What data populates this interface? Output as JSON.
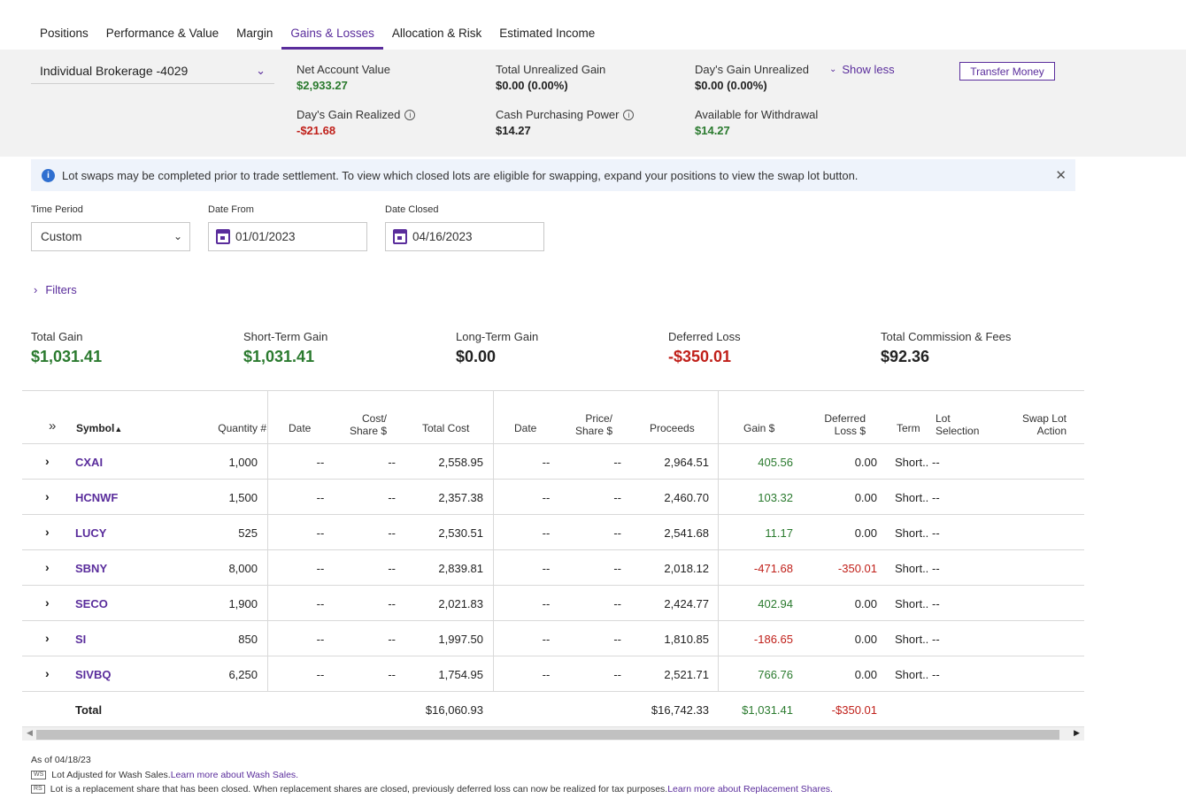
{
  "tabs": [
    {
      "label": "Positions"
    },
    {
      "label": "Performance & Value"
    },
    {
      "label": "Margin"
    },
    {
      "label": "Gains & Losses"
    },
    {
      "label": "Allocation & Risk"
    },
    {
      "label": "Estimated Income"
    }
  ],
  "account": {
    "selected": "Individual Brokerage -4029",
    "net_account_value_label": "Net Account Value",
    "net_account_value": "$2,933.27",
    "total_unrealized_label": "Total Unrealized Gain",
    "total_unrealized": "$0.00  (0.00%)",
    "days_unrealized_label": "Day's Gain Unrealized",
    "days_unrealized": "$0.00  (0.00%)",
    "days_realized_label": "Day's Gain Realized",
    "days_realized": "-$21.68",
    "cash_purchasing_label": "Cash Purchasing Power",
    "cash_purchasing": "$14.27",
    "available_withdrawal_label": "Available for Withdrawal",
    "available_withdrawal": "$14.27",
    "show_less": "Show less",
    "transfer_money": "Transfer Money"
  },
  "banner": {
    "text": "Lot swaps may be completed prior to trade settlement. To view which closed lots are eligible for swapping, expand your positions to view the swap lot button."
  },
  "filters": {
    "time_period_label": "Time Period",
    "time_period": "Custom",
    "date_from_label": "Date From",
    "date_from": "01/01/2023",
    "date_closed_label": "Date Closed",
    "date_closed": "04/16/2023",
    "filters_link": "Filters"
  },
  "totals": {
    "total_gain_label": "Total Gain",
    "total_gain": "$1,031.41",
    "short_term_label": "Short-Term Gain",
    "short_term": "$1,031.41",
    "long_term_label": "Long-Term Gain",
    "long_term": "$0.00",
    "deferred_loss_label": "Deferred Loss",
    "deferred_loss": "-$350.01",
    "commission_label": "Total Commission & Fees",
    "commission": "$92.36"
  },
  "table": {
    "headers": {
      "symbol": "Symbol",
      "quantity": "Quantity #",
      "date_open": "Date",
      "cost_share_1": "Cost/",
      "cost_share_2": "Share $",
      "total_cost": "Total Cost",
      "date_close": "Date",
      "price_share_1": "Price/",
      "price_share_2": "Share $",
      "proceeds": "Proceeds",
      "gain": "Gain $",
      "deferred_1": "Deferred",
      "deferred_2": "Loss $",
      "term": "Term",
      "lot_sel_1": "Lot",
      "lot_sel_2": "Selection",
      "swap_1": "Swap Lot",
      "swap_2": "Action"
    },
    "rows": [
      {
        "symbol": "CXAI",
        "quantity": "1,000",
        "date_open": "--",
        "cost_share": "--",
        "total_cost": "2,558.95",
        "date_close": "--",
        "price_share": "--",
        "proceeds": "2,964.51",
        "gain": "405.56",
        "deferred": "0.00",
        "term": "Short..",
        "lot": "--"
      },
      {
        "symbol": "HCNWF",
        "quantity": "1,500",
        "date_open": "--",
        "cost_share": "--",
        "total_cost": "2,357.38",
        "date_close": "--",
        "price_share": "--",
        "proceeds": "2,460.70",
        "gain": "103.32",
        "deferred": "0.00",
        "term": "Short..",
        "lot": "--"
      },
      {
        "symbol": "LUCY",
        "quantity": "525",
        "date_open": "--",
        "cost_share": "--",
        "total_cost": "2,530.51",
        "date_close": "--",
        "price_share": "--",
        "proceeds": "2,541.68",
        "gain": "11.17",
        "deferred": "0.00",
        "term": "Short..",
        "lot": "--"
      },
      {
        "symbol": "SBNY",
        "quantity": "8,000",
        "date_open": "--",
        "cost_share": "--",
        "total_cost": "2,839.81",
        "date_close": "--",
        "price_share": "--",
        "proceeds": "2,018.12",
        "gain": "-471.68",
        "deferred": "-350.01",
        "term": "Short..",
        "lot": "--"
      },
      {
        "symbol": "SECO",
        "quantity": "1,900",
        "date_open": "--",
        "cost_share": "--",
        "total_cost": "2,021.83",
        "date_close": "--",
        "price_share": "--",
        "proceeds": "2,424.77",
        "gain": "402.94",
        "deferred": "0.00",
        "term": "Short..",
        "lot": "--"
      },
      {
        "symbol": "SI",
        "quantity": "850",
        "date_open": "--",
        "cost_share": "--",
        "total_cost": "1,997.50",
        "date_close": "--",
        "price_share": "--",
        "proceeds": "1,810.85",
        "gain": "-186.65",
        "deferred": "0.00",
        "term": "Short..",
        "lot": "--"
      },
      {
        "symbol": "SIVBQ",
        "quantity": "6,250",
        "date_open": "--",
        "cost_share": "--",
        "total_cost": "1,754.95",
        "date_close": "--",
        "price_share": "--",
        "proceeds": "2,521.71",
        "gain": "766.76",
        "deferred": "0.00",
        "term": "Short..",
        "lot": "--"
      }
    ],
    "total": {
      "label": "Total",
      "total_cost": "$16,060.93",
      "proceeds": "$16,742.33",
      "gain": "$1,031.41",
      "deferred": "-$350.01"
    }
  },
  "footnotes": {
    "as_of": "As of 04/18/23",
    "ws_tag": "WS",
    "ws_text": "Lot Adjusted for Wash Sales.",
    "ws_link": "Learn more about Wash Sales.",
    "rs_tag": "RS",
    "rs_text": "Lot is a replacement share that has been closed. When replacement shares are closed, previously deferred loss can now be realized for tax purposes.",
    "rs_link": "Learn more about Replacement Shares."
  },
  "colors": {
    "accent": "#5a2d9c",
    "gain": "#2a7a2e",
    "loss": "#c0201a"
  }
}
